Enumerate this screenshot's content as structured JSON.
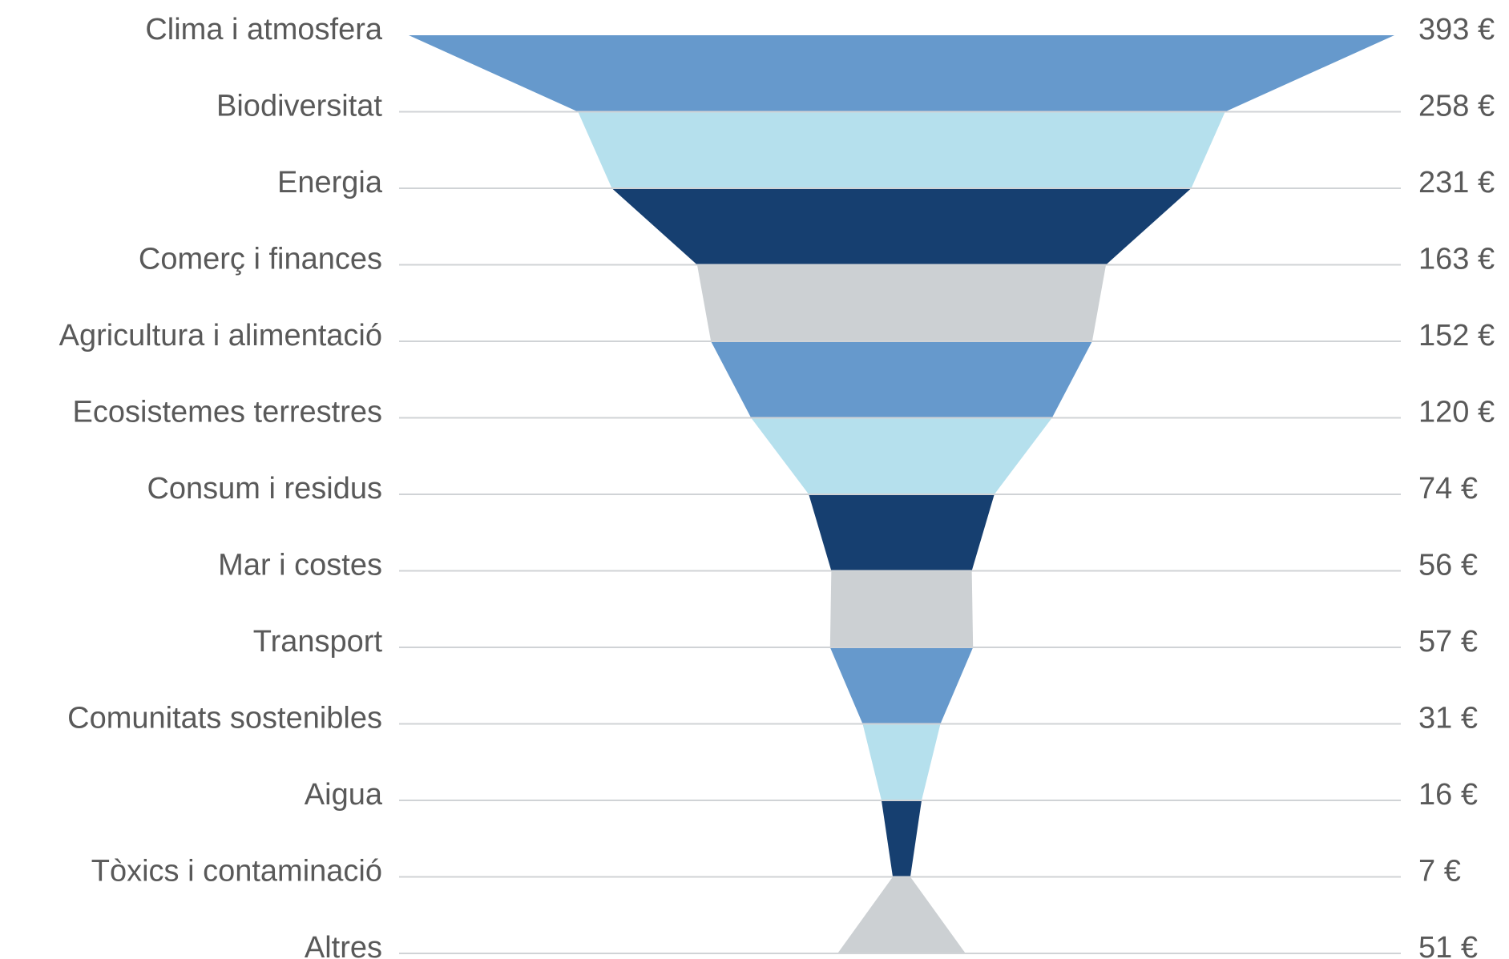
{
  "chart_data": {
    "type": "area",
    "orientation": "funnel",
    "title": "",
    "xlabel": "",
    "ylabel": "",
    "unit": "€",
    "categories": [
      "Clima i atmosfera",
      "Biodiversitat",
      "Energia",
      "Comerç i finances",
      "Agricultura i alimentació",
      "Ecosistemes terrestres",
      "Consum i residus",
      "Mar i costes",
      "Transport",
      "Comunitats sostenibles",
      "Aigua",
      "Tòxics i contaminació",
      "Altres"
    ],
    "values": [
      393,
      258,
      231,
      163,
      152,
      120,
      74,
      56,
      57,
      31,
      16,
      7,
      51
    ],
    "value_labels": [
      "393 €",
      "258 €",
      "231 €",
      "163 €",
      "152 €",
      "120 €",
      "74 €",
      "56 €",
      "57 €",
      "31 €",
      "16 €",
      "7 €",
      "51 €"
    ],
    "band_colors": [
      "#6699cc",
      "#b5e0ed",
      "#163f70",
      "#ccd0d3"
    ],
    "gridline_color": "#d0d3d6",
    "label_color": "#595959",
    "grid": true,
    "legend": "none"
  }
}
